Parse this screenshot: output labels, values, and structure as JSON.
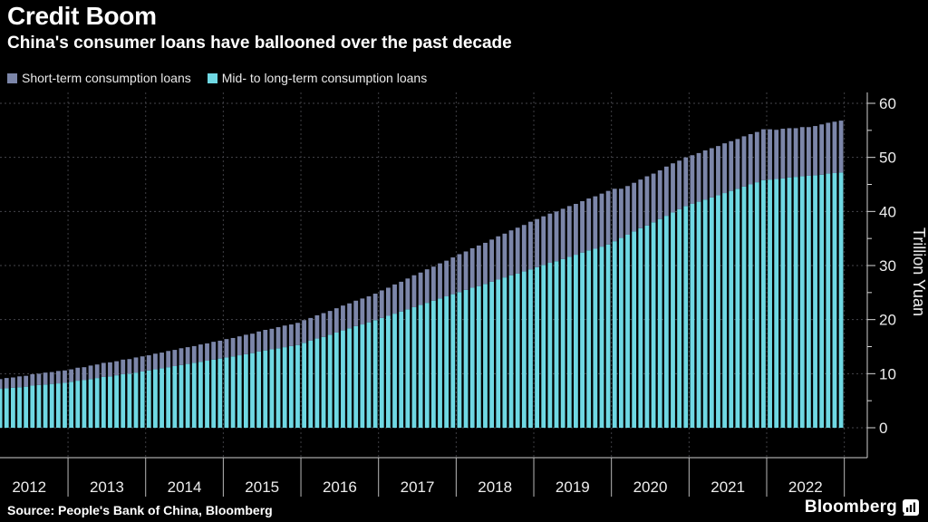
{
  "title": "Credit Boom",
  "subtitle": "China's consumer loans have ballooned over the past decade",
  "legend": [
    {
      "label": "Short-term consumption loans",
      "color": "#7c86a9"
    },
    {
      "label": "Mid- to long-term consumption loans",
      "color": "#6fd8e3"
    }
  ],
  "source": "Source: People's Bank of China, Bloomberg",
  "brand": {
    "name": "Bloomberg",
    "icon": "bloomberg-terminal-icon"
  },
  "colors": {
    "background": "#000000",
    "short_term": "#7c86a9",
    "mid_long_term": "#6fd8e3",
    "grid": "#46464b",
    "grid_vertical": "#3f3f44",
    "axis": "#cfcfcf",
    "tick": "#d8d8d8",
    "label": "#ededed"
  },
  "chart_data": {
    "type": "bar",
    "stacked": true,
    "title": "Credit Boom",
    "subtitle": "China's consumer loans have ballooned over the past decade",
    "ylabel": "Trillion Yuan",
    "ylim": [
      0,
      60
    ],
    "yticks": [
      0,
      10,
      20,
      30,
      40,
      50,
      60
    ],
    "y_minor_ticks": [
      5,
      15,
      25,
      35,
      45,
      55
    ],
    "grid": "dotted",
    "legend_position": "top-left",
    "x_frequency": "monthly",
    "x_start": "2012-01",
    "x_end": "2022-12",
    "year_labels": [
      "2012",
      "2013",
      "2014",
      "2015",
      "2016",
      "2017",
      "2018",
      "2019",
      "2020",
      "2021",
      "2022"
    ],
    "series": [
      {
        "name": "Short-term consumption loans",
        "color": "#7c86a9",
        "values": [
          1.8,
          1.8,
          1.9,
          1.9,
          2.0,
          2.0,
          2.1,
          2.1,
          2.2,
          2.2,
          2.3,
          2.3,
          2.3,
          2.4,
          2.4,
          2.5,
          2.5,
          2.6,
          2.6,
          2.6,
          2.7,
          2.7,
          2.8,
          2.8,
          2.8,
          2.9,
          2.9,
          3.0,
          3.0,
          3.1,
          3.1,
          3.1,
          3.2,
          3.2,
          3.3,
          3.3,
          3.4,
          3.4,
          3.5,
          3.6,
          3.6,
          3.7,
          3.8,
          3.8,
          3.9,
          4.0,
          4.0,
          4.1,
          4.2,
          4.2,
          4.3,
          4.4,
          4.4,
          4.5,
          4.6,
          4.6,
          4.7,
          4.8,
          4.8,
          4.9,
          5.1,
          5.2,
          5.4,
          5.5,
          5.7,
          5.9,
          6.0,
          6.2,
          6.3,
          6.5,
          6.6,
          6.8,
          7.0,
          7.1,
          7.3,
          7.5,
          7.6,
          7.8,
          8.0,
          8.1,
          8.3,
          8.5,
          8.6,
          8.8,
          8.9,
          9.0,
          9.1,
          9.2,
          9.3,
          9.4,
          9.4,
          9.5,
          9.6,
          9.7,
          9.8,
          9.9,
          9.7,
          9.1,
          9.0,
          9.0,
          9.0,
          9.1,
          9.0,
          9.0,
          9.1,
          9.1,
          9.0,
          9.0,
          9.0,
          9.0,
          9.1,
          9.1,
          9.1,
          9.2,
          9.2,
          9.2,
          9.3,
          9.3,
          9.3,
          9.4,
          9.3,
          9.1,
          9.2,
          9.1,
          9.0,
          9.1,
          9.0,
          9.1,
          9.3,
          9.4,
          9.5,
          9.6
        ]
      },
      {
        "name": "Mid- to long-term consumption loans",
        "color": "#6fd8e3",
        "values": [
          7.1,
          7.2,
          7.3,
          7.4,
          7.5,
          7.6,
          7.8,
          7.9,
          8.0,
          8.1,
          8.2,
          8.3,
          8.5,
          8.7,
          8.8,
          9.0,
          9.2,
          9.4,
          9.5,
          9.7,
          9.9,
          10.0,
          10.2,
          10.4,
          10.6,
          10.8,
          11.0,
          11.2,
          11.4,
          11.6,
          11.8,
          12.0,
          12.2,
          12.4,
          12.6,
          12.8,
          13.0,
          13.2,
          13.4,
          13.6,
          13.8,
          14.1,
          14.3,
          14.5,
          14.7,
          14.9,
          15.1,
          15.3,
          15.7,
          16.1,
          16.5,
          16.8,
          17.2,
          17.6,
          18.0,
          18.4,
          18.8,
          19.1,
          19.5,
          19.9,
          20.3,
          20.7,
          21.1,
          21.5,
          21.9,
          22.3,
          22.7,
          23.1,
          23.5,
          23.9,
          24.3,
          24.7,
          25.1,
          25.5,
          25.9,
          26.2,
          26.6,
          27.0,
          27.4,
          27.8,
          28.2,
          28.5,
          28.9,
          29.3,
          29.7,
          30.1,
          30.5,
          30.8,
          31.2,
          31.6,
          32.0,
          32.4,
          32.8,
          33.1,
          33.5,
          33.9,
          34.5,
          35.1,
          35.7,
          36.3,
          36.9,
          37.4,
          38.0,
          38.6,
          39.2,
          39.8,
          40.4,
          41.0,
          41.4,
          41.8,
          42.2,
          42.6,
          43.0,
          43.4,
          43.8,
          44.2,
          44.6,
          45.0,
          45.4,
          45.8,
          45.9,
          46.0,
          46.1,
          46.3,
          46.4,
          46.5,
          46.6,
          46.7,
          46.8,
          47.0,
          47.1,
          47.2
        ]
      }
    ]
  }
}
